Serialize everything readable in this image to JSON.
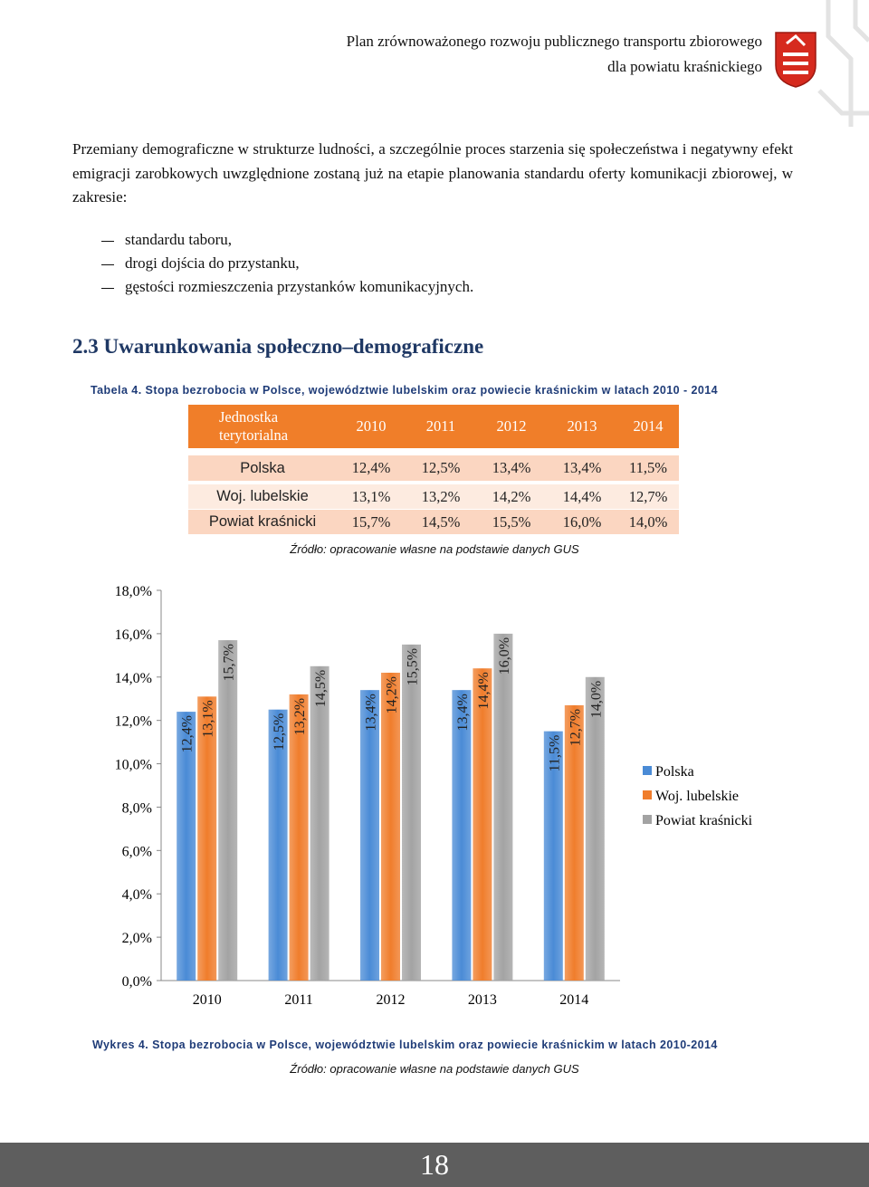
{
  "header": {
    "lines": [
      "Plan zrównoważonego  rozwoju publicznego transportu zbiorowego",
      "dla powiatu kraśnickiego"
    ]
  },
  "body": {
    "paragraph": "Przemiany demograficzne w strukturze ludności, a szczególnie proces starzenia się społeczeństwa i negatywny efekt emigracji zarobkowych uwzględnione zostaną już na etapie planowania standardu oferty komunikacji zbiorowej, w zakresie:"
  },
  "list": {
    "items": [
      "standardu taboru,",
      "drogi dojścia do przystanku,",
      "gęstości rozmieszczenia przystanków komunikacyjnych."
    ]
  },
  "section": {
    "heading": "2.3 Uwarunkowania społeczno–demograficzne"
  },
  "table": {
    "caption": "Tabela 4. Stopa bezrobocia w Polsce, województwie lubelskim oraz powiecie kraśnickim w latach 2010 - 2014",
    "header": [
      "Jednostka terytorialna",
      "2010",
      "2011",
      "2012",
      "2013",
      "2014"
    ],
    "rows": [
      [
        "Polska",
        "12,4%",
        "12,5%",
        "13,4%",
        "13,4%",
        "11,5%"
      ],
      [
        "Woj. lubelskie",
        "13,1%",
        "13,2%",
        "14,2%",
        "14,4%",
        "12,7%"
      ],
      [
        "Powiat kraśnicki",
        "15,7%",
        "14,5%",
        "15,5%",
        "16,0%",
        "14,0%"
      ]
    ],
    "source": "Źródło: opracowanie własne na podstawie danych GUS"
  },
  "chart_data": {
    "type": "bar",
    "categories": [
      "2010",
      "2011",
      "2012",
      "2013",
      "2014"
    ],
    "series": [
      {
        "name": "Polska",
        "color": "#4a8bd6",
        "values": [
          12.4,
          12.5,
          13.4,
          13.4,
          11.5
        ],
        "value_labels": [
          "12,4%",
          "12,5%",
          "13,4%",
          "13,4%",
          "11,5%"
        ]
      },
      {
        "name": "Woj. lubelskie",
        "color": "#f07d2c",
        "values": [
          13.1,
          13.2,
          14.2,
          14.4,
          12.7
        ],
        "value_labels": [
          "13,1%",
          "13,2%",
          "14,2%",
          "14,4%",
          "12,7%"
        ]
      },
      {
        "name": "Powiat kraśnicki",
        "color": "#a3a3a3",
        "values": [
          15.7,
          14.5,
          15.5,
          16.0,
          14.0
        ],
        "value_labels": [
          "15,7%",
          "14,5%",
          "15,5%",
          "16,0%",
          "14,0%"
        ]
      }
    ],
    "ylim": [
      0,
      18
    ],
    "yticks": [
      {
        "value": 0,
        "label": "0,0%"
      },
      {
        "value": 2,
        "label": "2,0%"
      },
      {
        "value": 4,
        "label": "4,0%"
      },
      {
        "value": 6,
        "label": "6,0%"
      },
      {
        "value": 8,
        "label": "8,0%"
      },
      {
        "value": 10,
        "label": "10,0%"
      },
      {
        "value": 12,
        "label": "12,0%"
      },
      {
        "value": 14,
        "label": "14,0%"
      },
      {
        "value": 16,
        "label": "16,0%"
      },
      {
        "value": 18,
        "label": "18,0%"
      }
    ],
    "grid": false,
    "legend": "right"
  },
  "figure": {
    "caption": "Wykres 4. Stopa bezrobocia w Polsce, województwie lubelskim oraz powiecie kraśnickim w latach 2010-2014",
    "source": "Źródło: opracowanie własne na podstawie danych GUS"
  },
  "footer": {
    "page": "18"
  }
}
